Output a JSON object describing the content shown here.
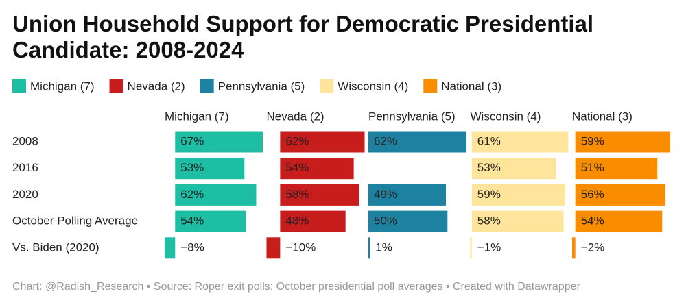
{
  "chart_data": {
    "type": "split-bar",
    "title": "Union Household Support for Democratic Presidential Candidate: 2008-2024",
    "categories": [
      "2008",
      "2016",
      "2020",
      "October Polling Average",
      "Vs. Biden (2020)"
    ],
    "series": [
      {
        "name": "Michigan (7)",
        "color": "#1ebea5",
        "values": [
          67,
          53,
          62,
          54,
          -8
        ],
        "value_labels": [
          "67%",
          "53%",
          "62%",
          "54%",
          "−8%"
        ]
      },
      {
        "name": "Nevada (2)",
        "color": "#c71e1d",
        "values": [
          62,
          54,
          58,
          48,
          -10
        ],
        "value_labels": [
          "62%",
          "54%",
          "58%",
          "48%",
          "−10%"
        ]
      },
      {
        "name": "Pennsylvania (5)",
        "color": "#1d81a2",
        "values": [
          62,
          null,
          49,
          50,
          1
        ],
        "value_labels": [
          "62%",
          null,
          "49%",
          "50%",
          "1%"
        ]
      },
      {
        "name": "Wisconsin (4)",
        "color": "#ffe59c",
        "values": [
          61,
          53,
          59,
          58,
          -1
        ],
        "value_labels": [
          "61%",
          "53%",
          "59%",
          "58%",
          "−1%"
        ]
      },
      {
        "name": "National (3)",
        "color": "#fa8c00",
        "values": [
          59,
          51,
          56,
          54,
          -2
        ],
        "value_labels": [
          "59%",
          "51%",
          "56%",
          "54%",
          "−2%"
        ]
      }
    ],
    "footer": "Chart: @Radish_Research • Source: Roper exit polls; October presidential poll averages • Created with Datawrapper"
  }
}
